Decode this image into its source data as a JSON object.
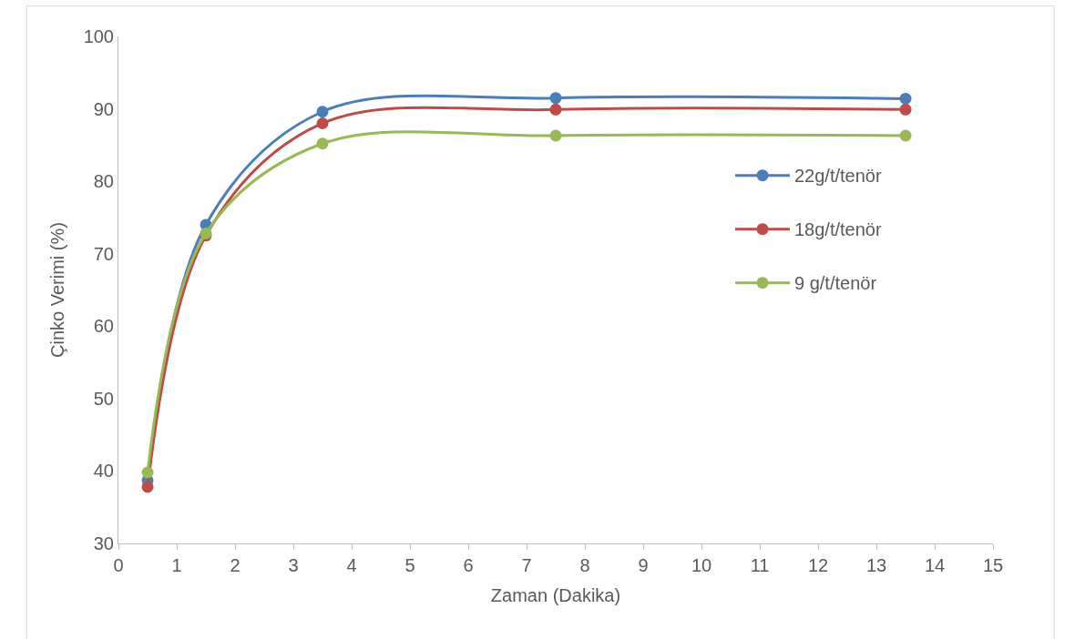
{
  "chart_data": {
    "type": "line",
    "xlabel": "Zaman (Dakika)",
    "ylabel": "Çinko Verimi (%)",
    "x": [
      0.5,
      1.5,
      3.5,
      7.5,
      13.5
    ],
    "series": [
      {
        "name": "22g/t/tenör",
        "color": "#4a7ebb",
        "values": [
          38.7,
          74.0,
          89.6,
          91.5,
          91.4
        ]
      },
      {
        "name": "18g/t/tenör",
        "color": "#be4b48",
        "values": [
          37.8,
          72.5,
          88.0,
          89.9,
          89.9
        ]
      },
      {
        "name": "9 g/t/tenör",
        "color": "#98b954",
        "values": [
          39.8,
          72.8,
          85.2,
          86.3,
          86.3
        ]
      }
    ],
    "xlim": [
      0,
      15
    ],
    "xticks": [
      0,
      1,
      2,
      3,
      4,
      5,
      6,
      7,
      8,
      9,
      10,
      11,
      12,
      13,
      14,
      15
    ],
    "ylim": [
      30,
      100
    ],
    "yticks": [
      30,
      40,
      50,
      60,
      70,
      80,
      90,
      100
    ],
    "grid": false,
    "legend": "right",
    "marker": "circle",
    "line_style": "solid"
  }
}
